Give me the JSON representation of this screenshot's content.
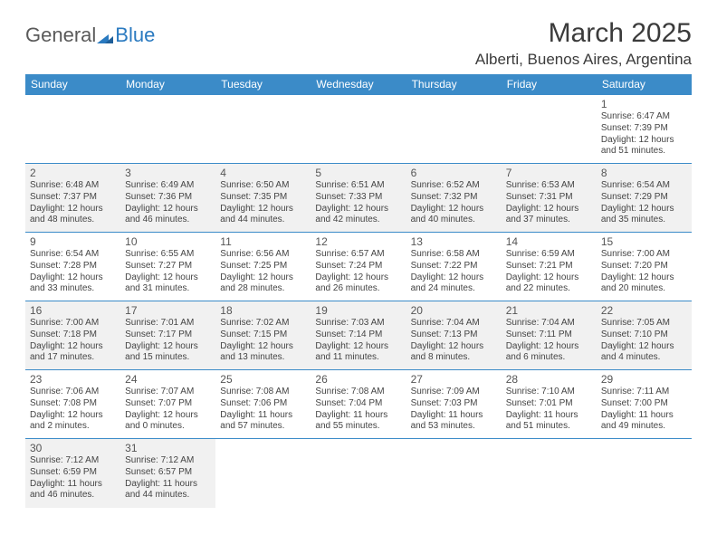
{
  "logo": {
    "part1": "General",
    "part2": "Blue"
  },
  "title": "March 2025",
  "location": "Alberti, Buenos Aires, Argentina",
  "weekdays": [
    "Sunday",
    "Monday",
    "Tuesday",
    "Wednesday",
    "Thursday",
    "Friday",
    "Saturday"
  ],
  "colors": {
    "header_bg": "#3b8bc8",
    "header_text": "#ffffff",
    "border": "#3b8bc8",
    "shaded_bg": "#f1f1f1",
    "text": "#444444",
    "logo_blue": "#2a7ac0"
  },
  "layout": {
    "start_day_index": 6,
    "num_days": 31,
    "columns": 7,
    "rows": 6
  },
  "days": [
    {
      "n": 1,
      "sunrise": "6:47 AM",
      "sunset": "7:39 PM",
      "daylight": "12 hours and 51 minutes."
    },
    {
      "n": 2,
      "sunrise": "6:48 AM",
      "sunset": "7:37 PM",
      "daylight": "12 hours and 48 minutes."
    },
    {
      "n": 3,
      "sunrise": "6:49 AM",
      "sunset": "7:36 PM",
      "daylight": "12 hours and 46 minutes."
    },
    {
      "n": 4,
      "sunrise": "6:50 AM",
      "sunset": "7:35 PM",
      "daylight": "12 hours and 44 minutes."
    },
    {
      "n": 5,
      "sunrise": "6:51 AM",
      "sunset": "7:33 PM",
      "daylight": "12 hours and 42 minutes."
    },
    {
      "n": 6,
      "sunrise": "6:52 AM",
      "sunset": "7:32 PM",
      "daylight": "12 hours and 40 minutes."
    },
    {
      "n": 7,
      "sunrise": "6:53 AM",
      "sunset": "7:31 PM",
      "daylight": "12 hours and 37 minutes."
    },
    {
      "n": 8,
      "sunrise": "6:54 AM",
      "sunset": "7:29 PM",
      "daylight": "12 hours and 35 minutes."
    },
    {
      "n": 9,
      "sunrise": "6:54 AM",
      "sunset": "7:28 PM",
      "daylight": "12 hours and 33 minutes."
    },
    {
      "n": 10,
      "sunrise": "6:55 AM",
      "sunset": "7:27 PM",
      "daylight": "12 hours and 31 minutes."
    },
    {
      "n": 11,
      "sunrise": "6:56 AM",
      "sunset": "7:25 PM",
      "daylight": "12 hours and 28 minutes."
    },
    {
      "n": 12,
      "sunrise": "6:57 AM",
      "sunset": "7:24 PM",
      "daylight": "12 hours and 26 minutes."
    },
    {
      "n": 13,
      "sunrise": "6:58 AM",
      "sunset": "7:22 PM",
      "daylight": "12 hours and 24 minutes."
    },
    {
      "n": 14,
      "sunrise": "6:59 AM",
      "sunset": "7:21 PM",
      "daylight": "12 hours and 22 minutes."
    },
    {
      "n": 15,
      "sunrise": "7:00 AM",
      "sunset": "7:20 PM",
      "daylight": "12 hours and 20 minutes."
    },
    {
      "n": 16,
      "sunrise": "7:00 AM",
      "sunset": "7:18 PM",
      "daylight": "12 hours and 17 minutes."
    },
    {
      "n": 17,
      "sunrise": "7:01 AM",
      "sunset": "7:17 PM",
      "daylight": "12 hours and 15 minutes."
    },
    {
      "n": 18,
      "sunrise": "7:02 AM",
      "sunset": "7:15 PM",
      "daylight": "12 hours and 13 minutes."
    },
    {
      "n": 19,
      "sunrise": "7:03 AM",
      "sunset": "7:14 PM",
      "daylight": "12 hours and 11 minutes."
    },
    {
      "n": 20,
      "sunrise": "7:04 AM",
      "sunset": "7:13 PM",
      "daylight": "12 hours and 8 minutes."
    },
    {
      "n": 21,
      "sunrise": "7:04 AM",
      "sunset": "7:11 PM",
      "daylight": "12 hours and 6 minutes."
    },
    {
      "n": 22,
      "sunrise": "7:05 AM",
      "sunset": "7:10 PM",
      "daylight": "12 hours and 4 minutes."
    },
    {
      "n": 23,
      "sunrise": "7:06 AM",
      "sunset": "7:08 PM",
      "daylight": "12 hours and 2 minutes."
    },
    {
      "n": 24,
      "sunrise": "7:07 AM",
      "sunset": "7:07 PM",
      "daylight": "12 hours and 0 minutes."
    },
    {
      "n": 25,
      "sunrise": "7:08 AM",
      "sunset": "7:06 PM",
      "daylight": "11 hours and 57 minutes."
    },
    {
      "n": 26,
      "sunrise": "7:08 AM",
      "sunset": "7:04 PM",
      "daylight": "11 hours and 55 minutes."
    },
    {
      "n": 27,
      "sunrise": "7:09 AM",
      "sunset": "7:03 PM",
      "daylight": "11 hours and 53 minutes."
    },
    {
      "n": 28,
      "sunrise": "7:10 AM",
      "sunset": "7:01 PM",
      "daylight": "11 hours and 51 minutes."
    },
    {
      "n": 29,
      "sunrise": "7:11 AM",
      "sunset": "7:00 PM",
      "daylight": "11 hours and 49 minutes."
    },
    {
      "n": 30,
      "sunrise": "7:12 AM",
      "sunset": "6:59 PM",
      "daylight": "11 hours and 46 minutes."
    },
    {
      "n": 31,
      "sunrise": "7:12 AM",
      "sunset": "6:57 PM",
      "daylight": "11 hours and 44 minutes."
    }
  ],
  "labels": {
    "sunrise": "Sunrise:",
    "sunset": "Sunset:",
    "daylight": "Daylight:"
  }
}
